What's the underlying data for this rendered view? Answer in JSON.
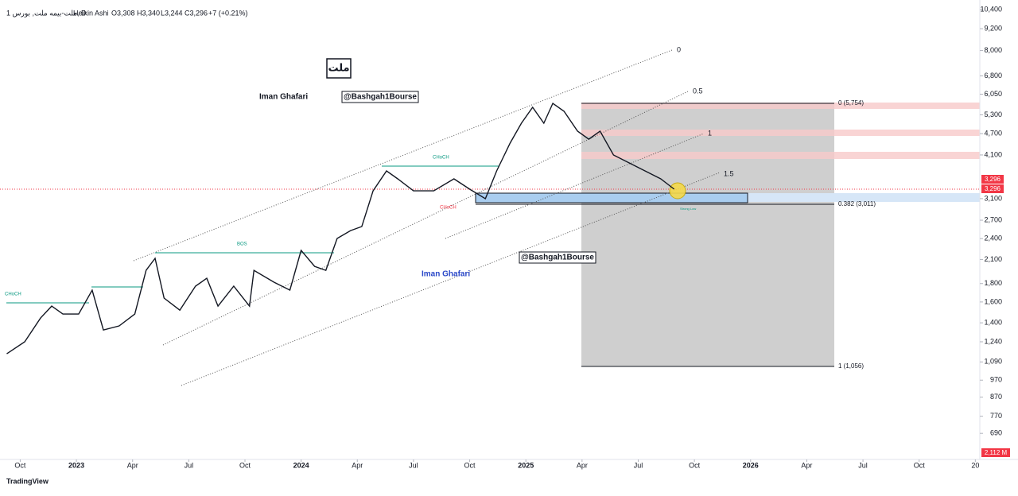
{
  "header": {
    "symbol": "1 ملت-بیمه ملت, بورس, D",
    "style": "Heikin Ashi",
    "open": "O3,308",
    "high": "H3,340",
    "low": "L3,244",
    "close": "C3,296",
    "change": "+7 (+0.21%)"
  },
  "chart_data": {
    "type": "line",
    "color": "#131722",
    "log_scale": true,
    "x": [
      2022.69,
      2022.77,
      2022.84,
      2022.89,
      2022.94,
      2023.01,
      2023.07,
      2023.12,
      2023.19,
      2023.26,
      2023.31,
      2023.35,
      2023.39,
      2023.46,
      2023.53,
      2023.58,
      2023.63,
      2023.7,
      2023.77,
      2023.79,
      2023.88,
      2023.95,
      2024.0,
      2024.06,
      2024.11,
      2024.16,
      2024.22,
      2024.27,
      2024.32,
      2024.38,
      2024.43,
      2024.5,
      2024.59,
      2024.68,
      2024.75,
      2024.82,
      2024.87,
      2024.93,
      2024.98,
      2025.03,
      2025.08,
      2025.12,
      2025.17,
      2025.23,
      2025.28,
      2025.33,
      2025.39,
      2025.46,
      2025.53,
      2025.6,
      2025.66
    ],
    "values": [
      1148,
      1240,
      1443,
      1558,
      1481,
      1481,
      1726,
      1337,
      1373,
      1481,
      1959,
      2115,
      1640,
      1518,
      1770,
      1862,
      1558,
      1770,
      1558,
      1959,
      1815,
      1726,
      2226,
      2009,
      1959,
      2402,
      2527,
      2593,
      3259,
      3702,
      3518,
      3259,
      3259,
      3518,
      3293,
      3098,
      3702,
      4423,
      5023,
      5562,
      5023,
      5706,
      5422,
      4774,
      4535,
      4774,
      4098,
      3895,
      3702,
      3518,
      3293
    ],
    "ylim": [
      578,
      11055
    ],
    "yticks": [
      {
        "value": 10400,
        "label": "10,400"
      },
      {
        "value": 9200,
        "label": "9,200"
      },
      {
        "value": 8000,
        "label": "8,000"
      },
      {
        "value": 6800,
        "label": "6,800"
      },
      {
        "value": 6050,
        "label": "6,050"
      },
      {
        "value": 5300,
        "label": "5,300"
      },
      {
        "value": 4700,
        "label": "4,700"
      },
      {
        "value": 4100,
        "label": "4,100"
      },
      {
        "value": 3100,
        "label": "3,100"
      },
      {
        "value": 2700,
        "label": "2,700"
      },
      {
        "value": 2400,
        "label": "2,400"
      },
      {
        "value": 2100,
        "label": "2,100"
      },
      {
        "value": 1800,
        "label": "1,800"
      },
      {
        "value": 1600,
        "label": "1,600"
      },
      {
        "value": 1400,
        "label": "1,400"
      },
      {
        "value": 1240,
        "label": "1,240"
      },
      {
        "value": 1090,
        "label": "1,090"
      },
      970,
      870,
      770,
      690
    ],
    "xlim": [
      2022.66,
      2027.02
    ],
    "xticks": [
      {
        "value": 2022.75,
        "label": "Oct"
      },
      2023,
      {
        "value": 2023.25,
        "label": "Apr"
      },
      {
        "value": 2023.5,
        "label": "Jul"
      },
      {
        "value": 2023.75,
        "label": "Oct"
      },
      2024,
      {
        "value": 2024.25,
        "label": "Apr"
      },
      {
        "value": 2024.5,
        "label": "Jul"
      },
      {
        "value": 2024.75,
        "label": "Oct"
      },
      2025,
      {
        "value": 2025.25,
        "label": "Apr"
      },
      {
        "value": 2025.5,
        "label": "Jul"
      },
      {
        "value": 2025.75,
        "label": "Oct"
      },
      2026,
      {
        "value": 2026.25,
        "label": "Apr"
      },
      {
        "value": 2026.5,
        "label": "Jul"
      },
      {
        "value": 2026.75,
        "label": "Oct"
      },
      {
        "value": 2027,
        "label": "20"
      }
    ]
  },
  "annotations": {
    "symbol_box": "ملت",
    "author": "Iman Ghafari",
    "author_blue": "Iman Ghafari",
    "handle": "@Bashgah1Bourse",
    "handle2": "@Bashgah1Bourse",
    "channel": [
      "0",
      "0.5",
      "1",
      "1.5"
    ],
    "fib": [
      "0 (5,754)",
      "0.382 (3,011)",
      "1 (1,056)"
    ],
    "bos": "BOS",
    "choch": "CHoCH",
    "strong_low": "Strong Low",
    "price_badges": [
      "3,296",
      "3,296"
    ],
    "volume_badge": "2,112 M"
  },
  "branding": "TradingView"
}
